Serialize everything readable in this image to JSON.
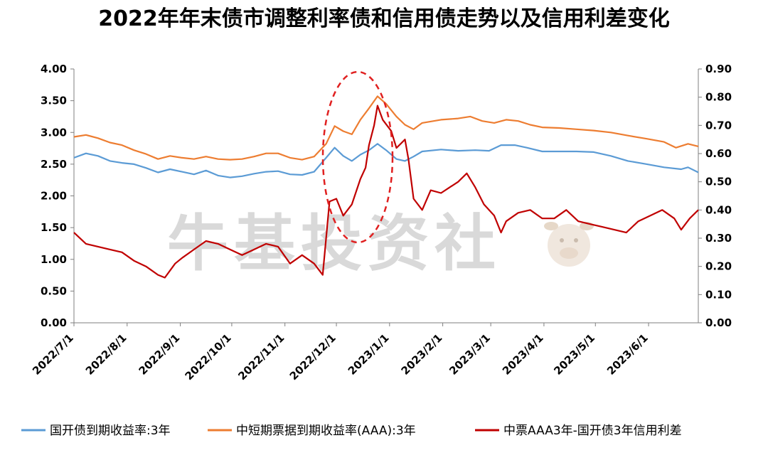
{
  "chart_data": {
    "type": "line",
    "title": "2022年年末债市调整利率债和信用债走势以及信用利差变化",
    "watermark": "牛基投资社",
    "x_ticks": [
      "2022/7/1",
      "2022/8/1",
      "2022/9/1",
      "2022/10/1",
      "2022/11/1",
      "2022/12/1",
      "2023/1/1",
      "2023/2/1",
      "2023/3/1",
      "2023/4/1",
      "2023/5/1",
      "2023/6/1"
    ],
    "x_range": [
      "2022/7/1",
      "2023/6/30"
    ],
    "y_left": {
      "range": [
        0,
        4
      ],
      "ticks": [
        "0.00",
        "0.50",
        "1.00",
        "1.50",
        "2.00",
        "2.50",
        "3.00",
        "3.50",
        "4.00"
      ]
    },
    "y_right": {
      "range": [
        0,
        0.9
      ],
      "ticks": [
        "0.00",
        "0.10",
        "0.20",
        "0.30",
        "0.40",
        "0.50",
        "0.60",
        "0.70",
        "0.80",
        "0.90"
      ]
    },
    "grid": false,
    "legend_position": "bottom",
    "annotation": "dashed red ellipse around the Dec 2022 spike",
    "series": [
      {
        "name": "国开债到期收益率:3年",
        "axis": "left",
        "color": "#5b9bd5",
        "points": [
          [
            "2022/7/1",
            2.6
          ],
          [
            "2022/7/8",
            2.67
          ],
          [
            "2022/7/15",
            2.63
          ],
          [
            "2022/7/22",
            2.55
          ],
          [
            "2022/7/29",
            2.52
          ],
          [
            "2022/8/5",
            2.5
          ],
          [
            "2022/8/12",
            2.44
          ],
          [
            "2022/8/19",
            2.37
          ],
          [
            "2022/8/26",
            2.42
          ],
          [
            "2022/9/2",
            2.38
          ],
          [
            "2022/9/9",
            2.34
          ],
          [
            "2022/9/16",
            2.4
          ],
          [
            "2022/9/23",
            2.32
          ],
          [
            "2022/9/30",
            2.29
          ],
          [
            "2022/10/7",
            2.31
          ],
          [
            "2022/10/14",
            2.35
          ],
          [
            "2022/10/21",
            2.38
          ],
          [
            "2022/10/28",
            2.39
          ],
          [
            "2022/11/4",
            2.34
          ],
          [
            "2022/11/11",
            2.33
          ],
          [
            "2022/11/18",
            2.38
          ],
          [
            "2022/11/25",
            2.6
          ],
          [
            "2022/11/30",
            2.76
          ],
          [
            "2022/12/5",
            2.63
          ],
          [
            "2022/12/10",
            2.55
          ],
          [
            "2022/12/15",
            2.65
          ],
          [
            "2022/12/20",
            2.72
          ],
          [
            "2022/12/25",
            2.82
          ],
          [
            "2022/12/30",
            2.72
          ],
          [
            "2023/1/5",
            2.58
          ],
          [
            "2023/1/10",
            2.55
          ],
          [
            "2023/1/15",
            2.62
          ],
          [
            "2023/1/20",
            2.7
          ],
          [
            "2023/1/31",
            2.73
          ],
          [
            "2023/2/10",
            2.71
          ],
          [
            "2023/2/20",
            2.72
          ],
          [
            "2023/2/28",
            2.71
          ],
          [
            "2023/3/7",
            2.8
          ],
          [
            "2023/3/15",
            2.8
          ],
          [
            "2023/3/22",
            2.76
          ],
          [
            "2023/3/31",
            2.7
          ],
          [
            "2023/4/10",
            2.7
          ],
          [
            "2023/4/20",
            2.7
          ],
          [
            "2023/4/30",
            2.69
          ],
          [
            "2023/5/10",
            2.63
          ],
          [
            "2023/5/20",
            2.55
          ],
          [
            "2023/5/31",
            2.5
          ],
          [
            "2023/6/10",
            2.45
          ],
          [
            "2023/6/20",
            2.42
          ],
          [
            "2023/6/24",
            2.45
          ],
          [
            "2023/6/30",
            2.37
          ]
        ]
      },
      {
        "name": "中短期票据到期收益率(AAA):3年",
        "axis": "left",
        "color": "#ed7d31",
        "points": [
          [
            "2022/7/1",
            2.93
          ],
          [
            "2022/7/8",
            2.96
          ],
          [
            "2022/7/15",
            2.91
          ],
          [
            "2022/7/22",
            2.84
          ],
          [
            "2022/7/29",
            2.8
          ],
          [
            "2022/8/5",
            2.72
          ],
          [
            "2022/8/12",
            2.66
          ],
          [
            "2022/8/19",
            2.58
          ],
          [
            "2022/8/26",
            2.63
          ],
          [
            "2022/9/2",
            2.6
          ],
          [
            "2022/9/9",
            2.58
          ],
          [
            "2022/9/16",
            2.62
          ],
          [
            "2022/9/23",
            2.58
          ],
          [
            "2022/9/30",
            2.57
          ],
          [
            "2022/10/7",
            2.58
          ],
          [
            "2022/10/14",
            2.62
          ],
          [
            "2022/10/21",
            2.67
          ],
          [
            "2022/10/28",
            2.67
          ],
          [
            "2022/11/4",
            2.6
          ],
          [
            "2022/11/11",
            2.57
          ],
          [
            "2022/11/18",
            2.62
          ],
          [
            "2022/11/25",
            2.82
          ],
          [
            "2022/11/30",
            3.1
          ],
          [
            "2022/12/5",
            3.02
          ],
          [
            "2022/12/10",
            2.97
          ],
          [
            "2022/12/15",
            3.2
          ],
          [
            "2022/12/20",
            3.38
          ],
          [
            "2022/12/25",
            3.57
          ],
          [
            "2022/12/30",
            3.45
          ],
          [
            "2023/1/5",
            3.25
          ],
          [
            "2023/1/10",
            3.12
          ],
          [
            "2023/1/15",
            3.05
          ],
          [
            "2023/1/20",
            3.15
          ],
          [
            "2023/1/31",
            3.2
          ],
          [
            "2023/2/10",
            3.22
          ],
          [
            "2023/2/17",
            3.25
          ],
          [
            "2023/2/24",
            3.18
          ],
          [
            "2023/3/3",
            3.15
          ],
          [
            "2023/3/10",
            3.2
          ],
          [
            "2023/3/17",
            3.18
          ],
          [
            "2023/3/24",
            3.12
          ],
          [
            "2023/3/31",
            3.08
          ],
          [
            "2023/4/10",
            3.07
          ],
          [
            "2023/4/20",
            3.05
          ],
          [
            "2023/4/30",
            3.03
          ],
          [
            "2023/5/10",
            3.0
          ],
          [
            "2023/5/20",
            2.95
          ],
          [
            "2023/5/31",
            2.9
          ],
          [
            "2023/6/10",
            2.85
          ],
          [
            "2023/6/17",
            2.76
          ],
          [
            "2023/6/24",
            2.82
          ],
          [
            "2023/6/30",
            2.78
          ]
        ]
      },
      {
        "name": "中票AAA3年-国开债3年信用利差",
        "axis": "right",
        "color": "#c00000",
        "points": [
          [
            "2022/7/1",
            0.32
          ],
          [
            "2022/7/8",
            0.28
          ],
          [
            "2022/7/15",
            0.27
          ],
          [
            "2022/7/22",
            0.26
          ],
          [
            "2022/7/29",
            0.25
          ],
          [
            "2022/8/5",
            0.22
          ],
          [
            "2022/8/12",
            0.2
          ],
          [
            "2022/8/19",
            0.17
          ],
          [
            "2022/8/23",
            0.16
          ],
          [
            "2022/8/29",
            0.21
          ],
          [
            "2022/9/2",
            0.23
          ],
          [
            "2022/9/9",
            0.26
          ],
          [
            "2022/9/16",
            0.29
          ],
          [
            "2022/9/23",
            0.28
          ],
          [
            "2022/9/30",
            0.26
          ],
          [
            "2022/10/7",
            0.24
          ],
          [
            "2022/10/14",
            0.26
          ],
          [
            "2022/10/21",
            0.28
          ],
          [
            "2022/10/28",
            0.27
          ],
          [
            "2022/11/4",
            0.21
          ],
          [
            "2022/11/11",
            0.24
          ],
          [
            "2022/11/18",
            0.21
          ],
          [
            "2022/11/23",
            0.17
          ],
          [
            "2022/11/27",
            0.43
          ],
          [
            "2022/12/1",
            0.44
          ],
          [
            "2022/12/5",
            0.38
          ],
          [
            "2022/12/10",
            0.42
          ],
          [
            "2022/12/15",
            0.51
          ],
          [
            "2022/12/18",
            0.55
          ],
          [
            "2022/12/20",
            0.63
          ],
          [
            "2022/12/23",
            0.7
          ],
          [
            "2022/12/25",
            0.77
          ],
          [
            "2022/12/28",
            0.72
          ],
          [
            "2023/1/2",
            0.68
          ],
          [
            "2023/1/5",
            0.62
          ],
          [
            "2023/1/10",
            0.65
          ],
          [
            "2023/1/12",
            0.58
          ],
          [
            "2023/1/15",
            0.44
          ],
          [
            "2023/1/20",
            0.4
          ],
          [
            "2023/1/25",
            0.47
          ],
          [
            "2023/1/31",
            0.46
          ],
          [
            "2023/2/5",
            0.48
          ],
          [
            "2023/2/10",
            0.5
          ],
          [
            "2023/2/15",
            0.53
          ],
          [
            "2023/2/20",
            0.48
          ],
          [
            "2023/2/25",
            0.42
          ],
          [
            "2023/3/3",
            0.38
          ],
          [
            "2023/3/7",
            0.32
          ],
          [
            "2023/3/10",
            0.36
          ],
          [
            "2023/3/17",
            0.39
          ],
          [
            "2023/3/24",
            0.4
          ],
          [
            "2023/3/31",
            0.37
          ],
          [
            "2023/4/7",
            0.37
          ],
          [
            "2023/4/14",
            0.4
          ],
          [
            "2023/4/21",
            0.36
          ],
          [
            "2023/4/28",
            0.35
          ],
          [
            "2023/5/5",
            0.34
          ],
          [
            "2023/5/12",
            0.33
          ],
          [
            "2023/5/19",
            0.32
          ],
          [
            "2023/5/26",
            0.36
          ],
          [
            "2023/6/2",
            0.38
          ],
          [
            "2023/6/9",
            0.4
          ],
          [
            "2023/6/16",
            0.37
          ],
          [
            "2023/6/20",
            0.33
          ],
          [
            "2023/6/25",
            0.37
          ],
          [
            "2023/6/30",
            0.4
          ]
        ]
      }
    ]
  }
}
